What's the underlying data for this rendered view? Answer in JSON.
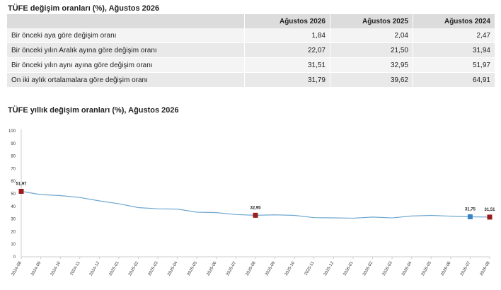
{
  "table_section": {
    "title": "TÜFE değişim oranları (%), Ağustos 2026",
    "columns": [
      "Ağustos 2026",
      "Ağustos 2025",
      "Ağustos 2024"
    ],
    "rows": [
      {
        "label": "Bir önceki aya göre değişim oranı",
        "values": [
          "1,84",
          "2,04",
          "2,47"
        ]
      },
      {
        "label": "Bir önceki yılın Aralık ayına göre değişim oranı",
        "values": [
          "22,07",
          "21,50",
          "31,94"
        ]
      },
      {
        "label": "Bir önceki yılın aynı ayına göre değişim oranı",
        "values": [
          "31,51",
          "32,95",
          "51,97"
        ]
      },
      {
        "label": "On iki aylık ortalamalara göre değişim oranı",
        "values": [
          "31,79",
          "39,62",
          "64,91"
        ]
      }
    ]
  },
  "chart_section": {
    "title": "TÜFE yıllık değişim oranları (%), Ağustos 2026"
  },
  "chart_data": {
    "type": "line",
    "title": "TÜFE yıllık değişim oranları (%), Ağustos 2026",
    "xlabel": "",
    "ylabel": "",
    "ylim": [
      0,
      100
    ],
    "yticks": [
      0,
      10,
      20,
      30,
      40,
      50,
      60,
      70,
      80,
      90,
      100
    ],
    "grid": false,
    "line_color": "#6fa8d0",
    "x": [
      "2024-08",
      "2024-09",
      "2024-10",
      "2024-11",
      "2024-12",
      "2025-01",
      "2025-02",
      "2025-03",
      "2025-04",
      "2025-05",
      "2025-06",
      "2025-07",
      "2025-08",
      "2025-09",
      "2025-10",
      "2025-11",
      "2025-12",
      "2026-01",
      "2026-02",
      "2026-03",
      "2026-04",
      "2026-05",
      "2026-06",
      "2026-07",
      "2026-08"
    ],
    "series": [
      {
        "values": [
          51.97,
          49.38,
          48.58,
          47.09,
          44.38,
          42.12,
          39.05,
          38.1,
          37.86,
          35.41,
          35.05,
          33.52,
          32.95,
          33.29,
          32.87,
          31.07,
          30.89,
          30.65,
          31.53,
          30.87,
          32.37,
          32.87,
          32.25,
          31.75,
          31.51
        ]
      }
    ],
    "labels": [
      {
        "x": "2024-08",
        "text": "51,97",
        "marker_color": "#9e1b1b"
      },
      {
        "x": "2025-08",
        "text": "32,95",
        "marker_color": "#9e1b1b"
      },
      {
        "x": "2026-07",
        "text": "31,75",
        "marker_color": "#3a84c4"
      },
      {
        "x": "2026-08",
        "text": "31,51",
        "marker_color": "#9e1b1b"
      }
    ]
  }
}
